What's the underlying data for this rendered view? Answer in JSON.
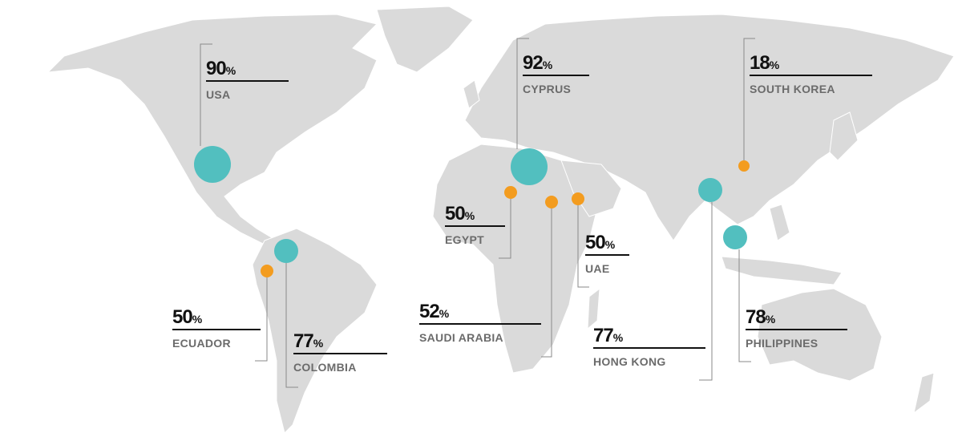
{
  "unit": "%",
  "markers": [
    {
      "country": "USA",
      "value": 90,
      "color": "#52bfbf"
    },
    {
      "country": "CYPRUS",
      "value": 92,
      "color": "#52bfbf"
    },
    {
      "country": "SOUTH KOREA",
      "value": 18,
      "color": "#f39c1f"
    },
    {
      "country": "EGYPT",
      "value": 50,
      "color": "#f39c1f"
    },
    {
      "country": "SAUDI ARABIA",
      "value": 52,
      "color": "#f39c1f"
    },
    {
      "country": "UAE",
      "value": 50,
      "color": "#f39c1f"
    },
    {
      "country": "ECUADOR",
      "value": 50,
      "color": "#f39c1f"
    },
    {
      "country": "COLOMBIA",
      "value": 77,
      "color": "#52bfbf"
    },
    {
      "country": "HONG KONG",
      "value": 77,
      "color": "#52bfbf"
    },
    {
      "country": "PHILIPPINES",
      "value": 78,
      "color": "#52bfbf"
    }
  ]
}
